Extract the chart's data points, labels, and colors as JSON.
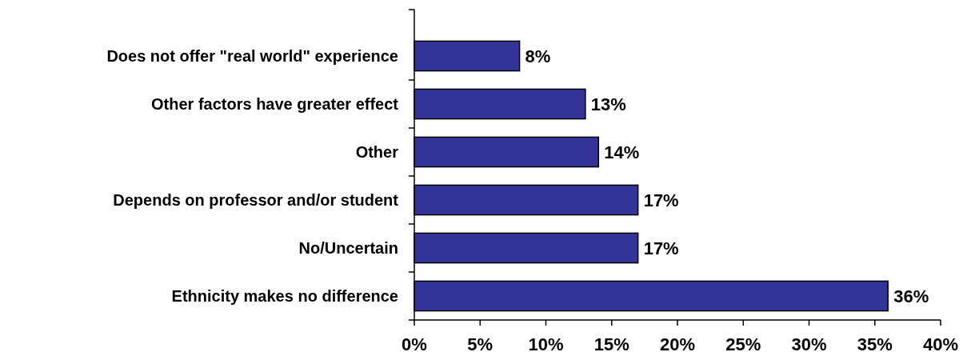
{
  "chart_data": {
    "type": "bar",
    "orientation": "horizontal",
    "categories": [
      "Does not offer \"real world\" experience",
      "Other factors have greater effect",
      "Other",
      "Depends on professor and/or student",
      "No/Uncertain",
      "Ethnicity makes no difference"
    ],
    "values": [
      8,
      13,
      14,
      17,
      17,
      36
    ],
    "value_labels": [
      "8%",
      "13%",
      "14%",
      "17%",
      "17%",
      "36%"
    ],
    "color": "#333399",
    "xlim": [
      0,
      40
    ],
    "xticks": [
      {
        "value": 0,
        "label": "0%"
      },
      {
        "value": 5,
        "label": "5%"
      },
      {
        "value": 10,
        "label": "10%"
      },
      {
        "value": 15,
        "label": "15%"
      },
      {
        "value": 20,
        "label": "20%"
      },
      {
        "value": 25,
        "label": "25%"
      },
      {
        "value": 30,
        "label": "30%"
      },
      {
        "value": 35,
        "label": "35%"
      },
      {
        "value": 40,
        "label": "40%"
      }
    ],
    "grid": false
  }
}
